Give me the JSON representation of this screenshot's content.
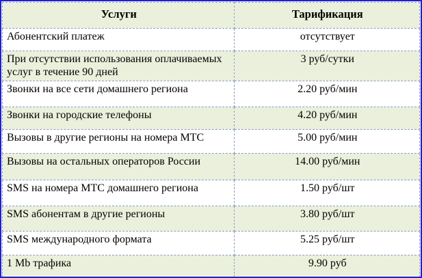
{
  "table": {
    "columns": [
      "Услуги",
      "Тарификация"
    ],
    "rows": [
      {
        "service": "Абонентский платеж",
        "rate": "отсутствует"
      },
      {
        "service": "При отсутствии использования оплачиваемых услуг в течение 90 дней",
        "rate": "3 руб/сутки"
      },
      {
        "service": "Звонки на все сети домашнего региона",
        "rate": "2.20 руб/мин"
      },
      {
        "service": "Звонки на городские телефоны",
        "rate": "4.20 руб/мин"
      },
      {
        "service": "Вызовы в другие регионы на номера МТС",
        "rate": "5.00 руб/мин"
      },
      {
        "service": "Вызовы на остальных операторов России",
        "rate": "14.00 руб/мин"
      },
      {
        "service": "SMS на номера МТС домашнего региона",
        "rate": "1.50 руб/шт"
      },
      {
        "service": "SMS абонентам в другие регионы",
        "rate": "3.80 руб/шт"
      },
      {
        "service": "SMS международного формата",
        "rate": "5.25 руб/шт"
      },
      {
        "service": "1 Mb трафика",
        "rate": "9.90 руб"
      }
    ],
    "colors": {
      "outer_border": "#2222cc",
      "inner_border_dashed": "#8a99c0",
      "stripe_background": "#eaf0db",
      "row_background": "#ffffff",
      "text": "#000000"
    }
  }
}
